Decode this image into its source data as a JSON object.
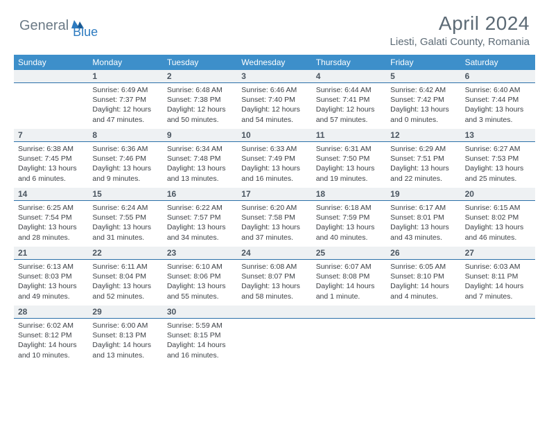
{
  "logo": {
    "general": "General",
    "blue": "Blue"
  },
  "title": "April 2024",
  "location": "Liesti, Galati County, Romania",
  "header_bg": "#3d8fca",
  "daynum_bg": "#eef1f3",
  "daynum_border": "#2a6fa8",
  "day_headers": [
    "Sunday",
    "Monday",
    "Tuesday",
    "Wednesday",
    "Thursday",
    "Friday",
    "Saturday"
  ],
  "weeks": [
    [
      {
        "n": "",
        "sr": "",
        "ss": "",
        "dl": ""
      },
      {
        "n": "1",
        "sr": "Sunrise: 6:49 AM",
        "ss": "Sunset: 7:37 PM",
        "dl": "Daylight: 12 hours and 47 minutes."
      },
      {
        "n": "2",
        "sr": "Sunrise: 6:48 AM",
        "ss": "Sunset: 7:38 PM",
        "dl": "Daylight: 12 hours and 50 minutes."
      },
      {
        "n": "3",
        "sr": "Sunrise: 6:46 AM",
        "ss": "Sunset: 7:40 PM",
        "dl": "Daylight: 12 hours and 54 minutes."
      },
      {
        "n": "4",
        "sr": "Sunrise: 6:44 AM",
        "ss": "Sunset: 7:41 PM",
        "dl": "Daylight: 12 hours and 57 minutes."
      },
      {
        "n": "5",
        "sr": "Sunrise: 6:42 AM",
        "ss": "Sunset: 7:42 PM",
        "dl": "Daylight: 13 hours and 0 minutes."
      },
      {
        "n": "6",
        "sr": "Sunrise: 6:40 AM",
        "ss": "Sunset: 7:44 PM",
        "dl": "Daylight: 13 hours and 3 minutes."
      }
    ],
    [
      {
        "n": "7",
        "sr": "Sunrise: 6:38 AM",
        "ss": "Sunset: 7:45 PM",
        "dl": "Daylight: 13 hours and 6 minutes."
      },
      {
        "n": "8",
        "sr": "Sunrise: 6:36 AM",
        "ss": "Sunset: 7:46 PM",
        "dl": "Daylight: 13 hours and 9 minutes."
      },
      {
        "n": "9",
        "sr": "Sunrise: 6:34 AM",
        "ss": "Sunset: 7:48 PM",
        "dl": "Daylight: 13 hours and 13 minutes."
      },
      {
        "n": "10",
        "sr": "Sunrise: 6:33 AM",
        "ss": "Sunset: 7:49 PM",
        "dl": "Daylight: 13 hours and 16 minutes."
      },
      {
        "n": "11",
        "sr": "Sunrise: 6:31 AM",
        "ss": "Sunset: 7:50 PM",
        "dl": "Daylight: 13 hours and 19 minutes."
      },
      {
        "n": "12",
        "sr": "Sunrise: 6:29 AM",
        "ss": "Sunset: 7:51 PM",
        "dl": "Daylight: 13 hours and 22 minutes."
      },
      {
        "n": "13",
        "sr": "Sunrise: 6:27 AM",
        "ss": "Sunset: 7:53 PM",
        "dl": "Daylight: 13 hours and 25 minutes."
      }
    ],
    [
      {
        "n": "14",
        "sr": "Sunrise: 6:25 AM",
        "ss": "Sunset: 7:54 PM",
        "dl": "Daylight: 13 hours and 28 minutes."
      },
      {
        "n": "15",
        "sr": "Sunrise: 6:24 AM",
        "ss": "Sunset: 7:55 PM",
        "dl": "Daylight: 13 hours and 31 minutes."
      },
      {
        "n": "16",
        "sr": "Sunrise: 6:22 AM",
        "ss": "Sunset: 7:57 PM",
        "dl": "Daylight: 13 hours and 34 minutes."
      },
      {
        "n": "17",
        "sr": "Sunrise: 6:20 AM",
        "ss": "Sunset: 7:58 PM",
        "dl": "Daylight: 13 hours and 37 minutes."
      },
      {
        "n": "18",
        "sr": "Sunrise: 6:18 AM",
        "ss": "Sunset: 7:59 PM",
        "dl": "Daylight: 13 hours and 40 minutes."
      },
      {
        "n": "19",
        "sr": "Sunrise: 6:17 AM",
        "ss": "Sunset: 8:01 PM",
        "dl": "Daylight: 13 hours and 43 minutes."
      },
      {
        "n": "20",
        "sr": "Sunrise: 6:15 AM",
        "ss": "Sunset: 8:02 PM",
        "dl": "Daylight: 13 hours and 46 minutes."
      }
    ],
    [
      {
        "n": "21",
        "sr": "Sunrise: 6:13 AM",
        "ss": "Sunset: 8:03 PM",
        "dl": "Daylight: 13 hours and 49 minutes."
      },
      {
        "n": "22",
        "sr": "Sunrise: 6:11 AM",
        "ss": "Sunset: 8:04 PM",
        "dl": "Daylight: 13 hours and 52 minutes."
      },
      {
        "n": "23",
        "sr": "Sunrise: 6:10 AM",
        "ss": "Sunset: 8:06 PM",
        "dl": "Daylight: 13 hours and 55 minutes."
      },
      {
        "n": "24",
        "sr": "Sunrise: 6:08 AM",
        "ss": "Sunset: 8:07 PM",
        "dl": "Daylight: 13 hours and 58 minutes."
      },
      {
        "n": "25",
        "sr": "Sunrise: 6:07 AM",
        "ss": "Sunset: 8:08 PM",
        "dl": "Daylight: 14 hours and 1 minute."
      },
      {
        "n": "26",
        "sr": "Sunrise: 6:05 AM",
        "ss": "Sunset: 8:10 PM",
        "dl": "Daylight: 14 hours and 4 minutes."
      },
      {
        "n": "27",
        "sr": "Sunrise: 6:03 AM",
        "ss": "Sunset: 8:11 PM",
        "dl": "Daylight: 14 hours and 7 minutes."
      }
    ],
    [
      {
        "n": "28",
        "sr": "Sunrise: 6:02 AM",
        "ss": "Sunset: 8:12 PM",
        "dl": "Daylight: 14 hours and 10 minutes."
      },
      {
        "n": "29",
        "sr": "Sunrise: 6:00 AM",
        "ss": "Sunset: 8:13 PM",
        "dl": "Daylight: 14 hours and 13 minutes."
      },
      {
        "n": "30",
        "sr": "Sunrise: 5:59 AM",
        "ss": "Sunset: 8:15 PM",
        "dl": "Daylight: 14 hours and 16 minutes."
      },
      {
        "n": "",
        "sr": "",
        "ss": "",
        "dl": ""
      },
      {
        "n": "",
        "sr": "",
        "ss": "",
        "dl": ""
      },
      {
        "n": "",
        "sr": "",
        "ss": "",
        "dl": ""
      },
      {
        "n": "",
        "sr": "",
        "ss": "",
        "dl": ""
      }
    ]
  ]
}
